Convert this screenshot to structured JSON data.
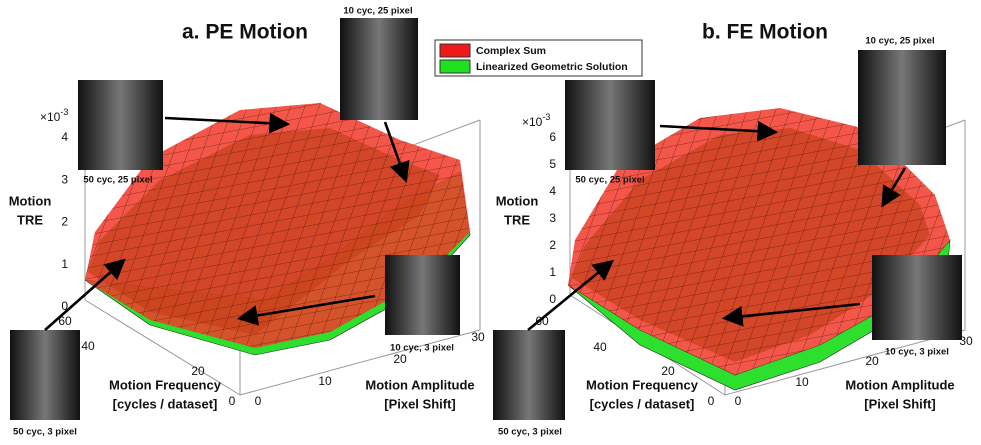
{
  "legend": [
    "Complex Sum",
    "Linearized Geometric Solution"
  ],
  "panels": [
    {
      "title": "a. PE Motion",
      "z_scale_base": "×10",
      "z_scale_exp": "-3",
      "z_label": [
        "Motion",
        "TRE"
      ],
      "z_ticks": [
        0,
        1,
        2,
        3,
        4
      ],
      "freq_ticks": [
        60,
        40,
        20,
        0
      ],
      "amp_ticks": [
        0,
        10,
        20,
        30
      ],
      "freq_label": [
        "Motion Frequency",
        "[cycles / dataset]"
      ],
      "amp_label": [
        "Motion Amplitude",
        "[Pixel Shift]"
      ],
      "insets": [
        "50 cyc, 25 pixel",
        "10 cyc, 25 pixel",
        "50 cyc, 3 pixel",
        "10 cyc, 3 pixel"
      ]
    },
    {
      "title": "b. FE Motion",
      "z_scale_base": "×10",
      "z_scale_exp": "-3",
      "z_label": [
        "Motion",
        "TRE"
      ],
      "z_ticks": [
        0,
        1,
        2,
        3,
        4,
        5,
        6
      ],
      "freq_ticks": [
        60,
        40,
        20,
        0
      ],
      "amp_ticks": [
        0,
        10,
        20,
        30
      ],
      "freq_label": [
        "Motion Frequency",
        "[cycles / dataset]"
      ],
      "amp_label": [
        "Motion Amplitude",
        "[Pixel Shift]"
      ],
      "insets": [
        "50 cyc, 25 pixel",
        "10 cyc, 25 pixel",
        "50 cyc, 3 pixel",
        "10 cyc, 3 pixel"
      ]
    }
  ]
}
